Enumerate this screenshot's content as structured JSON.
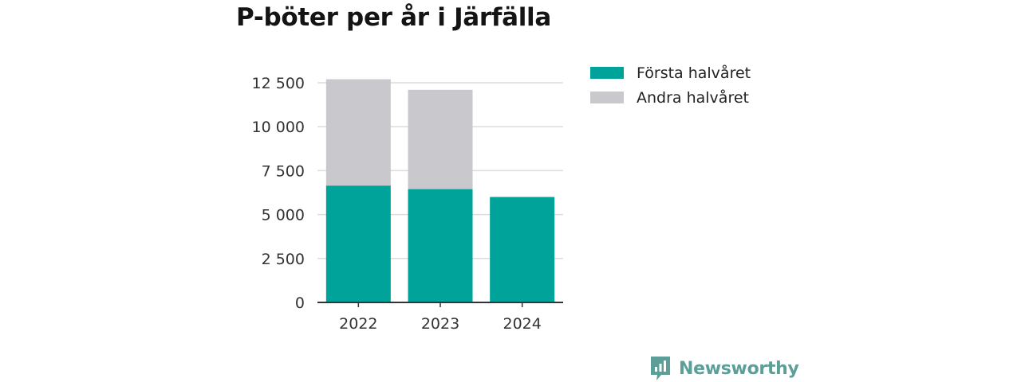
{
  "chart_data": {
    "type": "bar",
    "stacked": true,
    "title": "P-böter per år i Järfälla",
    "categories": [
      "2022",
      "2023",
      "2024"
    ],
    "series": [
      {
        "name": "Första halvåret",
        "color": "#00a39a",
        "values": [
          6650,
          6450,
          6000
        ]
      },
      {
        "name": "Andra halvåret",
        "color": "#c8c8cd",
        "values": [
          6050,
          5650,
          0
        ]
      }
    ],
    "xlabel": "",
    "ylabel": "",
    "ylim": [
      0,
      12500
    ],
    "yticks": [
      0,
      2500,
      5000,
      7500,
      10000,
      12500
    ],
    "ytick_labels": [
      "0",
      "2 500",
      "5 000",
      "7 500",
      "10 000",
      "12 500"
    ],
    "grid": true,
    "legend_position": "top-right"
  },
  "brand": {
    "name": "Newsworthy",
    "logo_icon": "newsworthy-bar-chart-icon",
    "color": "#5c9f98"
  }
}
